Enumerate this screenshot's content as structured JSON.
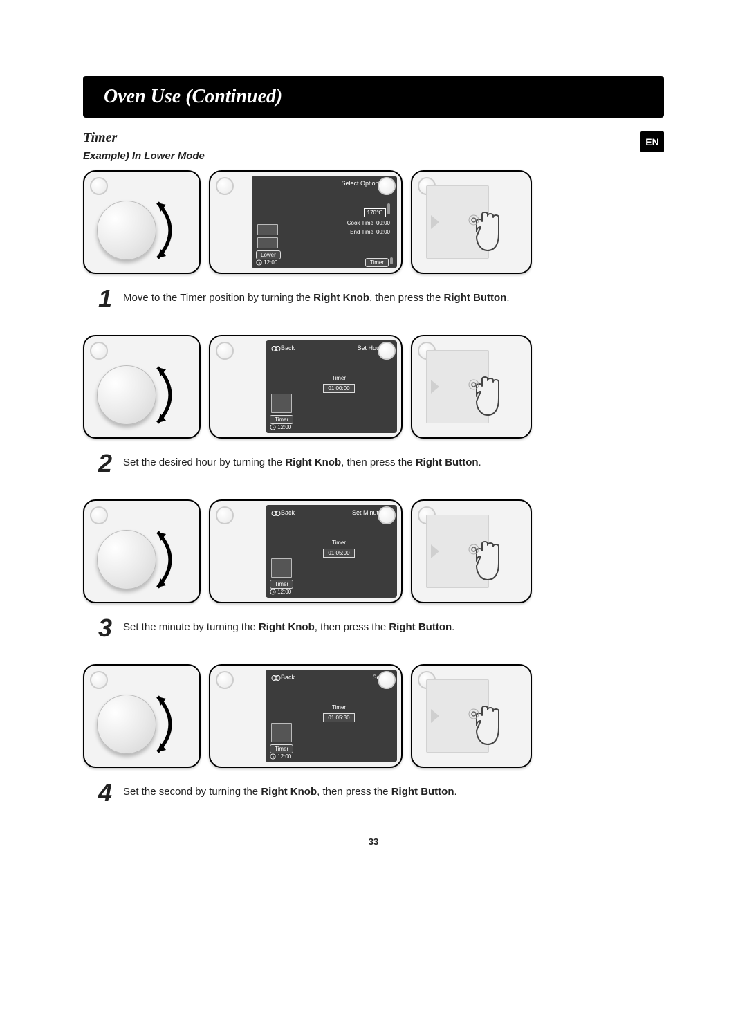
{
  "header": {
    "title": "Oven Use (Continued)"
  },
  "lang_badge": "EN",
  "section": {
    "title": "Timer",
    "subtitle": "Example) In Lower Mode"
  },
  "page_number": "33",
  "clock_label": "12:00",
  "lower_label": "Lower",
  "timer_label": "Timer",
  "back_label": "Back",
  "steps": [
    {
      "num": "1",
      "text_parts": [
        "Move to the Timer position by turning the ",
        "Right Knob",
        ", then press the ",
        "Right Button",
        "."
      ],
      "screen": {
        "top_left": "",
        "top_right": "Select Options",
        "layout": "multi",
        "temp": "170℃",
        "cook_time_label": "Cook Time",
        "cook_time_value": "00:00",
        "end_time_label": "End Time",
        "end_time_value": "00:00",
        "bottom_left": "Lower",
        "bottom_right": "Timer"
      }
    },
    {
      "num": "2",
      "text_parts": [
        "Set the desired hour by turning the ",
        "Right Knob",
        ", then press the ",
        "Right Button",
        "."
      ],
      "screen": {
        "top_left": "Back",
        "top_right": "Set Hour",
        "layout": "single",
        "center_label": "Timer",
        "center_value": "01:00:00",
        "bottom_left": "Timer",
        "bottom_right": ""
      }
    },
    {
      "num": "3",
      "text_parts": [
        "Set the minute by turning the ",
        "Right Knob",
        ", then press the ",
        "Right Button",
        "."
      ],
      "screen": {
        "top_left": "Back",
        "top_right": "Set Minute",
        "layout": "single",
        "center_label": "Timer",
        "center_value": "01:05:00",
        "bottom_left": "Timer",
        "bottom_right": ""
      }
    },
    {
      "num": "4",
      "text_parts": [
        "Set the second by turning the ",
        "Right Knob",
        ", then press the ",
        "Right Button",
        "."
      ],
      "screen": {
        "top_left": "Back",
        "top_right": "Set",
        "layout": "single",
        "center_label": "Timer",
        "center_value": "01:05:30",
        "bottom_left": "Timer",
        "bottom_right": ""
      }
    }
  ]
}
